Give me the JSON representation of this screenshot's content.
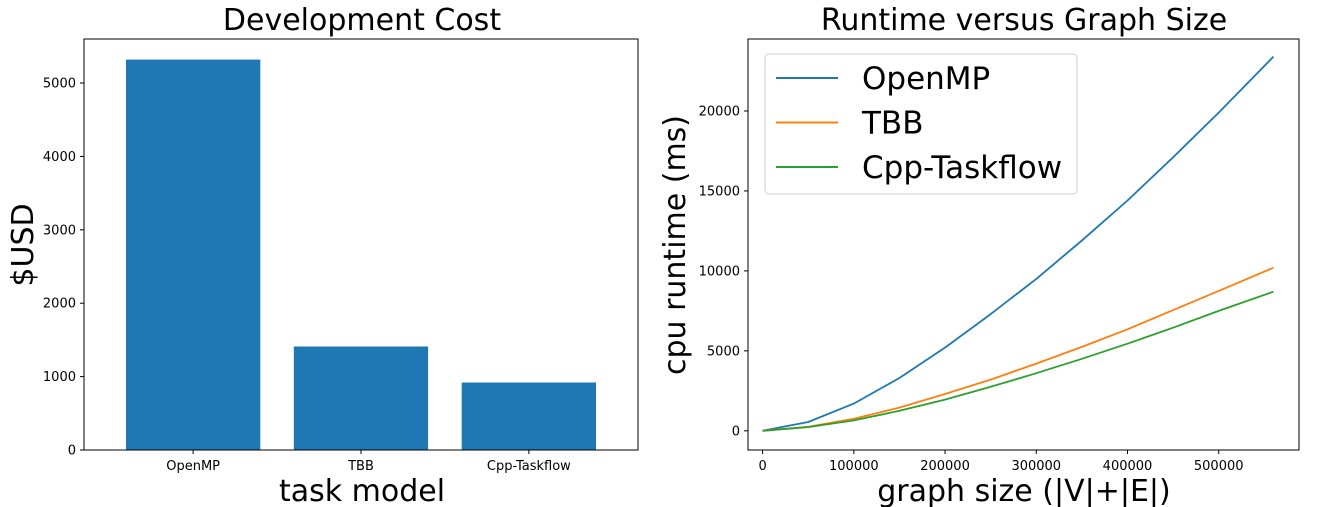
{
  "chart_data": [
    {
      "type": "bar",
      "title": "Development Cost",
      "xlabel": "task model",
      "ylabel": "$USD",
      "categories": [
        "OpenMP",
        "TBB",
        "Cpp-Taskflow"
      ],
      "values": [
        5320,
        1410,
        920
      ],
      "ylim": [
        0,
        5600
      ],
      "yticks": [
        0,
        1000,
        2000,
        3000,
        4000,
        5000
      ],
      "ytick_labels": [
        "0",
        "1000",
        "2000",
        "3000",
        "4000",
        "5000"
      ],
      "grid": false,
      "colors": {
        "bar": "#1f77b4"
      }
    },
    {
      "type": "line",
      "title": "Runtime versus Graph Size",
      "xlabel": "graph size (|V|+|E|)",
      "ylabel": "cpu runtime (ms)",
      "xlim": [
        -16000,
        588000
      ],
      "ylim": [
        -1200,
        24500
      ],
      "xticks": [
        0,
        100000,
        200000,
        300000,
        400000,
        500000
      ],
      "xtick_labels": [
        "0",
        "100000",
        "200000",
        "300000",
        "400000",
        "500000"
      ],
      "yticks": [
        0,
        5000,
        10000,
        15000,
        20000
      ],
      "ytick_labels": [
        "0",
        "5000",
        "10000",
        "15000",
        "20000"
      ],
      "legend_position": "top-left",
      "grid": false,
      "x": [
        0,
        50000,
        100000,
        150000,
        200000,
        250000,
        300000,
        350000,
        400000,
        450000,
        500000,
        560000
      ],
      "series": [
        {
          "name": "OpenMP",
          "color": "#1f77b4",
          "values": [
            0,
            550,
            1700,
            3300,
            5200,
            7300,
            9500,
            11900,
            14400,
            17100,
            19900,
            23400
          ]
        },
        {
          "name": "TBB",
          "color": "#ff7f0e",
          "values": [
            0,
            250,
            750,
            1450,
            2300,
            3200,
            4200,
            5250,
            6350,
            7550,
            8750,
            10200
          ]
        },
        {
          "name": "Cpp-Taskflow",
          "color": "#2ca02c",
          "values": [
            0,
            230,
            650,
            1250,
            1950,
            2750,
            3600,
            4500,
            5450,
            6450,
            7500,
            8700
          ]
        }
      ]
    }
  ]
}
